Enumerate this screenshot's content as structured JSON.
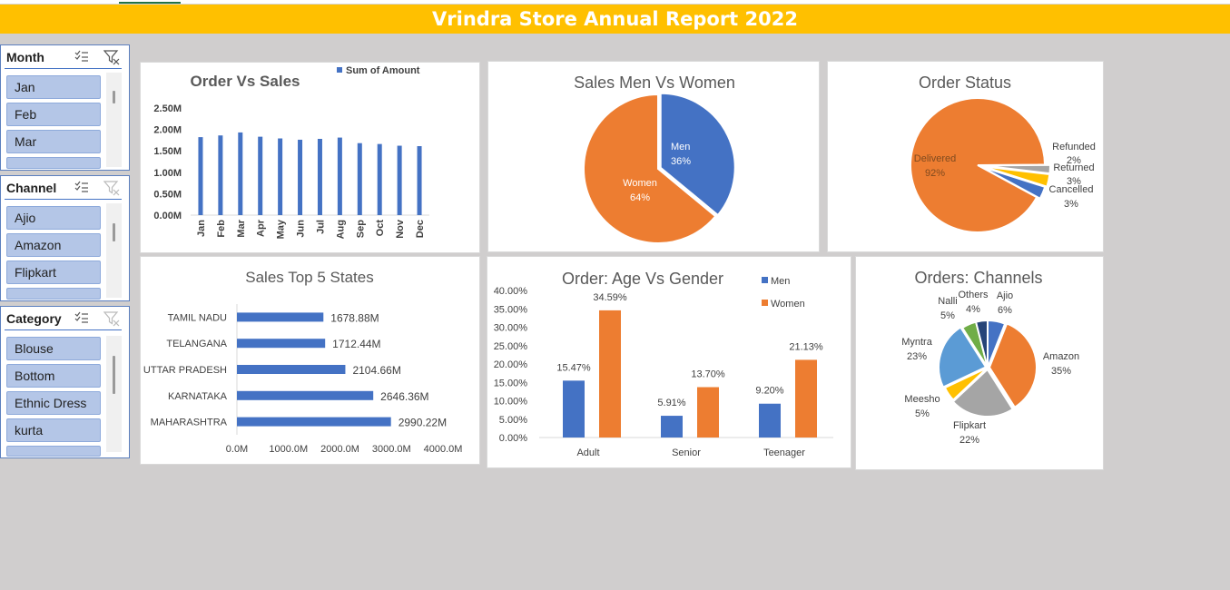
{
  "report_title": "Vrindra Store Annual Report 2022",
  "slicers": [
    {
      "title": "Month",
      "items": [
        "Jan",
        "Feb",
        "Mar"
      ]
    },
    {
      "title": "Channel",
      "items": [
        "Ajio",
        "Amazon",
        "Flipkart"
      ]
    },
    {
      "title": "Category",
      "items": [
        "Blouse",
        "Bottom",
        "Ethnic Dress",
        "kurta"
      ]
    }
  ],
  "colors": {
    "blue": "#4472c4",
    "orange": "#ed7d31",
    "gray": "#a5a5a5",
    "yellow": "#ffc000",
    "lightblue": "#5b9bd5",
    "green": "#70ad47",
    "navy": "#264478",
    "title_bar": "#ffc000"
  },
  "chart_data": [
    {
      "id": "order_vs_sales",
      "type": "bar",
      "title": "Order Vs Sales",
      "legend": "Sum of Amount",
      "legend_position": "top-right",
      "categories": [
        "Jan",
        "Feb",
        "Mar",
        "Apr",
        "May",
        "Jun",
        "Jul",
        "Aug",
        "Sep",
        "Oct",
        "Nov",
        "Dec"
      ],
      "values": [
        1.82,
        1.86,
        1.93,
        1.83,
        1.79,
        1.76,
        1.78,
        1.81,
        1.68,
        1.66,
        1.62,
        1.61
      ],
      "unit": "M",
      "yticks": [
        "0.00M",
        "0.50M",
        "1.00M",
        "1.50M",
        "2.00M",
        "2.50M"
      ],
      "ylim": [
        0,
        2.5
      ]
    },
    {
      "id": "sales_men_women",
      "type": "pie",
      "title": "Sales Men Vs Women",
      "slices": [
        {
          "label": "Men",
          "value": 36,
          "pct": "36%",
          "color": "#4472c4"
        },
        {
          "label": "Women",
          "value": 64,
          "pct": "64%",
          "color": "#ed7d31"
        }
      ]
    },
    {
      "id": "order_status",
      "type": "pie",
      "title": "Order Status",
      "slices": [
        {
          "label": "Delivered",
          "value": 92,
          "pct": "92%",
          "color": "#ed7d31"
        },
        {
          "label": "Refunded",
          "value": 2,
          "pct": "2%",
          "color": "#a5a5a5"
        },
        {
          "label": "Returned",
          "value": 3,
          "pct": "3%",
          "color": "#ffc000"
        },
        {
          "label": "Cancelled",
          "value": 3,
          "pct": "3%",
          "color": "#4472c4"
        }
      ]
    },
    {
      "id": "top5_states",
      "type": "bar",
      "orientation": "horizontal",
      "title": "Sales Top 5 States",
      "categories": [
        "TAMIL NADU",
        "TELANGANA",
        "UTTAR PRADESH",
        "KARNATAKA",
        "MAHARASHTRA"
      ],
      "values": [
        1678.88,
        1712.44,
        2104.66,
        2646.36,
        2990.22
      ],
      "labels": [
        "1678.88M",
        "1712.44M",
        "2104.66M",
        "2646.36M",
        "2990.22M"
      ],
      "xticks": [
        "0.0M",
        "1000.0M",
        "2000.0M",
        "3000.0M",
        "4000.0M"
      ],
      "xlim": [
        0,
        4000
      ]
    },
    {
      "id": "age_vs_gender",
      "type": "bar",
      "title": "Order: Age Vs Gender",
      "categories": [
        "Adult",
        "Senior",
        "Teenager"
      ],
      "series": [
        {
          "name": "Men",
          "values": [
            15.47,
            5.91,
            9.2
          ],
          "labels": [
            "15.47%",
            "5.91%",
            "9.20%"
          ],
          "color": "#4472c4"
        },
        {
          "name": "Women",
          "values": [
            34.59,
            13.7,
            21.13
          ],
          "labels": [
            "34.59%",
            "13.70%",
            "21.13%"
          ],
          "color": "#ed7d31"
        }
      ],
      "yticks": [
        "0.00%",
        "5.00%",
        "10.00%",
        "15.00%",
        "20.00%",
        "25.00%",
        "30.00%",
        "35.00%",
        "40.00%"
      ],
      "ylim": [
        0,
        40
      ],
      "legend_position": "top-right"
    },
    {
      "id": "orders_channels",
      "type": "pie",
      "title": "Orders: Channels",
      "slices": [
        {
          "label": "Ajio",
          "value": 6,
          "pct": "6%",
          "color": "#4472c4"
        },
        {
          "label": "Amazon",
          "value": 35,
          "pct": "35%",
          "color": "#ed7d31"
        },
        {
          "label": "Flipkart",
          "value": 22,
          "pct": "22%",
          "color": "#a5a5a5"
        },
        {
          "label": "Meesho",
          "value": 5,
          "pct": "5%",
          "color": "#ffc000"
        },
        {
          "label": "Myntra",
          "value": 23,
          "pct": "23%",
          "color": "#5b9bd5"
        },
        {
          "label": "Nalli",
          "value": 5,
          "pct": "5%",
          "color": "#70ad47"
        },
        {
          "label": "Others",
          "value": 4,
          "pct": "4%",
          "color": "#264478"
        }
      ]
    }
  ]
}
